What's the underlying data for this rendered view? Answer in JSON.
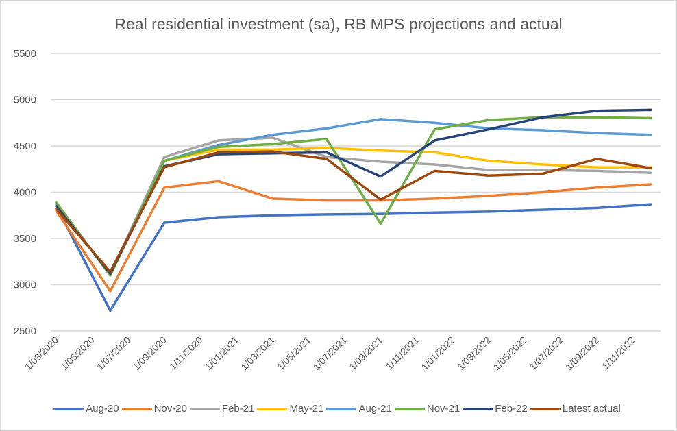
{
  "chart_data": {
    "type": "line",
    "title": "Real residential investment (sa), RB MPS projections and actual",
    "xlabel": "",
    "ylabel": "",
    "ylim": [
      2500,
      5500
    ],
    "yticks": [
      "5500",
      "5000",
      "4500",
      "4000",
      "3500",
      "3000",
      "2500"
    ],
    "ytick_values": [
      5500,
      5000,
      4500,
      4000,
      3500,
      3000,
      2500
    ],
    "grid": true,
    "legend_position": "bottom",
    "xtick_labels": [
      "1/03/2020",
      "1/05/2020",
      "1/07/2020",
      "1/09/2020",
      "1/11/2020",
      "1/01/2021",
      "1/03/2021",
      "1/05/2021",
      "1/07/2021",
      "1/09/2021",
      "1/11/2021",
      "1/01/2022",
      "1/03/2022",
      "1/05/2022",
      "1/07/2022",
      "1/09/2022",
      "1/11/2022"
    ],
    "x": [
      "1/03/2020",
      "1/06/2020",
      "1/09/2020",
      "1/12/2020",
      "1/03/2021",
      "1/06/2021",
      "1/09/2021",
      "1/12/2021",
      "1/03/2022",
      "1/06/2022",
      "1/09/2022",
      "1/12/2022"
    ],
    "x_month_index": [
      0,
      3,
      6,
      9,
      12,
      15,
      18,
      21,
      24,
      27,
      30,
      33
    ],
    "series": [
      {
        "name": "Aug-20",
        "color": "#4472c4",
        "values": [
          3850,
          2720,
          3670,
          3730,
          3750,
          3760,
          3765,
          3780,
          3790,
          3810,
          3830,
          3870
        ]
      },
      {
        "name": "Nov-20",
        "color": "#ed7d31",
        "values": [
          3800,
          2930,
          4050,
          4120,
          3930,
          3910,
          3910,
          3930,
          3960,
          4000,
          4050,
          4085
        ]
      },
      {
        "name": "Feb-21",
        "color": "#a5a5a5",
        "values": [
          3880,
          3110,
          4380,
          4560,
          4590,
          4380,
          4330,
          4300,
          4240,
          4240,
          4230,
          4210
        ]
      },
      {
        "name": "May-21",
        "color": "#ffc000",
        "values": [
          3890,
          3100,
          4340,
          4460,
          4460,
          4480,
          4450,
          4430,
          4340,
          4300,
          4270,
          4270
        ]
      },
      {
        "name": "Aug-21",
        "color": "#5b9bd5",
        "values": [
          3870,
          3110,
          4340,
          4510,
          4620,
          4690,
          4790,
          4750,
          4690,
          4670,
          4640,
          4620
        ]
      },
      {
        "name": "Nov-21",
        "color": "#70ad47",
        "values": [
          3890,
          3100,
          4340,
          4490,
          4520,
          4575,
          3660,
          4680,
          4780,
          4810,
          4810,
          4800
        ]
      },
      {
        "name": "Feb-22",
        "color": "#264478",
        "values": [
          3850,
          3120,
          4280,
          4410,
          4420,
          4430,
          4170,
          4560,
          4680,
          4810,
          4880,
          4890
        ]
      },
      {
        "name": "Latest actual",
        "color": "#9e480e",
        "values": [
          3820,
          3140,
          4270,
          4430,
          4440,
          4360,
          3920,
          4230,
          4180,
          4200,
          4360,
          4260
        ]
      }
    ]
  }
}
